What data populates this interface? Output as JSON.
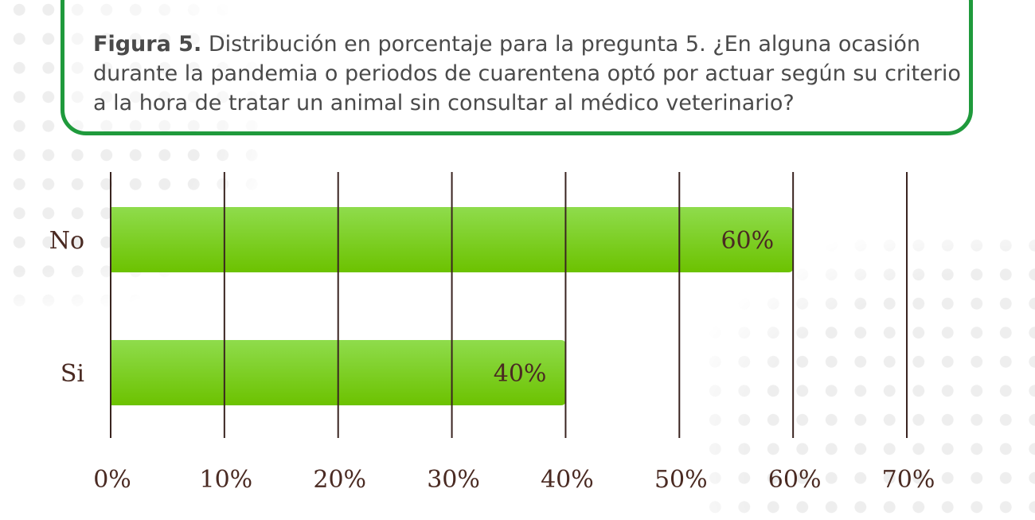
{
  "caption": {
    "label": "Figura 5.",
    "text": "Distribución en porcentaje para la pregunta 5. ¿En alguna ocasión durante la pandemia o periodos de cuarentena optó por actuar según su criterio a la hora de tratar un animal sin consultar al médico veterinario?"
  },
  "colors": {
    "frame": "#1f9a3c",
    "bar_top": "#8fdc4c",
    "bar_bottom": "#6cc200",
    "grid": "#3a2420",
    "text": "#4a2a22"
  },
  "chart_data": {
    "type": "bar",
    "orientation": "horizontal",
    "categories": [
      "No",
      "Si"
    ],
    "values": [
      60,
      40
    ],
    "value_labels": [
      "60%",
      "40%"
    ],
    "xlim": [
      0,
      70
    ],
    "x_ticks": [
      0,
      10,
      20,
      30,
      40,
      50,
      60,
      70
    ],
    "x_tick_labels": [
      "0%",
      "10%",
      "20%",
      "30%",
      "40%",
      "50%",
      "60%",
      "70%"
    ],
    "grid": "vertical",
    "legend": "none"
  }
}
